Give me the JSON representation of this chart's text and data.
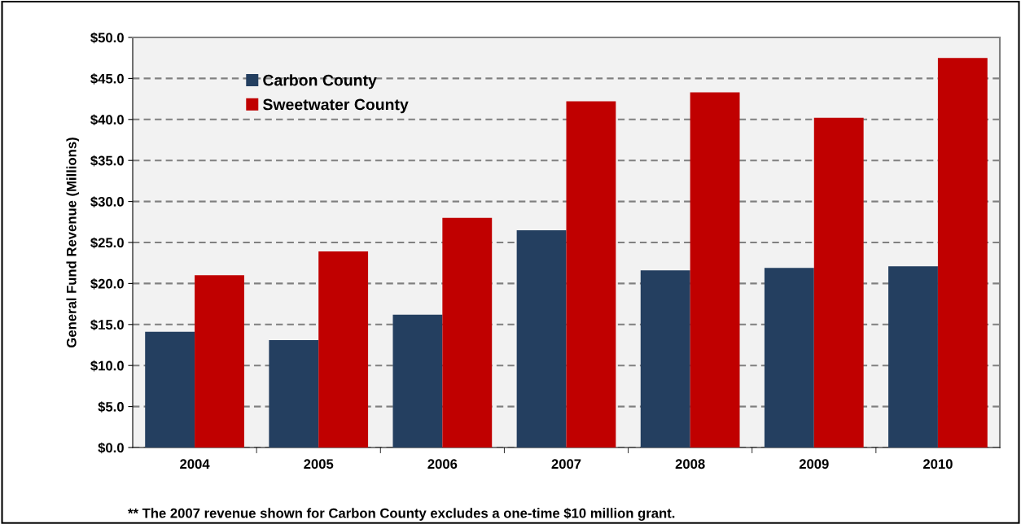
{
  "chart_data": {
    "type": "bar",
    "ylabel": "General Fund Revenue (Millions)",
    "categories": [
      "2004",
      "2005",
      "2006",
      "2007",
      "2008",
      "2009",
      "2010"
    ],
    "series": [
      {
        "name": "Carbon County",
        "color": "#243f60",
        "values": [
          14.1,
          13.1,
          16.2,
          26.5,
          21.6,
          21.9,
          22.1
        ]
      },
      {
        "name": "Sweetwater County",
        "color": "#c00000",
        "values": [
          21.0,
          23.9,
          28.0,
          42.2,
          43.3,
          40.2,
          47.5
        ]
      }
    ],
    "ylim": [
      0,
      50
    ],
    "yticks": [
      {
        "value": 0,
        "label": "$0.0"
      },
      {
        "value": 5,
        "label": "$5.0"
      },
      {
        "value": 10,
        "label": "$10.0"
      },
      {
        "value": 15,
        "label": "$15.0"
      },
      {
        "value": 20,
        "label": "$20.0"
      },
      {
        "value": 25,
        "label": "$25.0"
      },
      {
        "value": 30,
        "label": "$30.0"
      },
      {
        "value": 35,
        "label": "$35.0"
      },
      {
        "value": 40,
        "label": "$40.0"
      },
      {
        "value": 45,
        "label": "$45.0"
      },
      {
        "value": 50,
        "label": "$50.0"
      }
    ],
    "grid": "y",
    "legend": "top left",
    "annotations": [
      "** The 2007 revenue shown for Carbon County excludes a one-time $10 million grant."
    ]
  }
}
